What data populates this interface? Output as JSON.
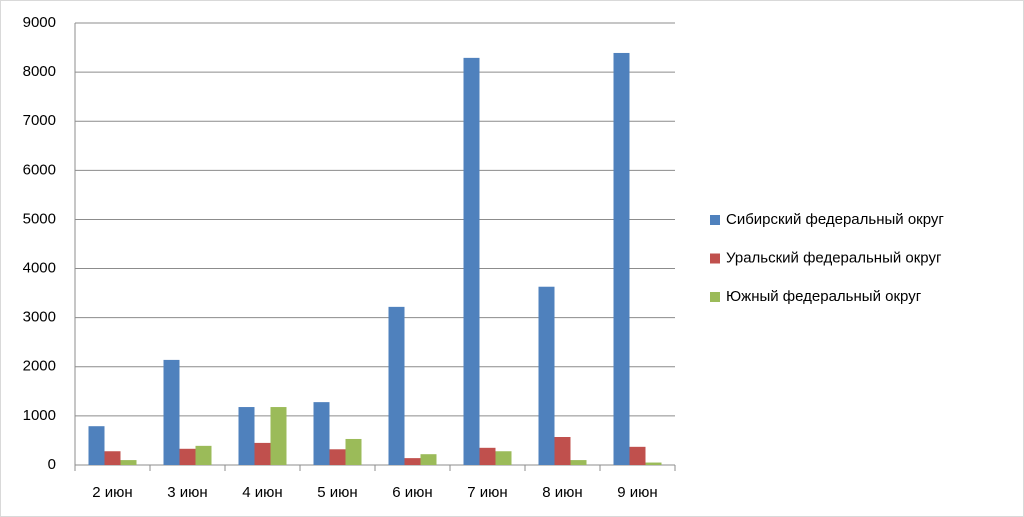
{
  "chart_data": {
    "type": "bar",
    "categories": [
      "2 июн",
      "3 июн",
      "4 июн",
      "5 июн",
      "6 июн",
      "7 июн",
      "8 июн",
      "9 июн"
    ],
    "series": [
      {
        "name": "Сибирский федеральный округ",
        "color": "#4f81bd",
        "values": [
          790,
          2140,
          1180,
          1280,
          3220,
          8290,
          3630,
          8390
        ]
      },
      {
        "name": "Уральский федеральный округ",
        "color": "#c0504d",
        "values": [
          280,
          330,
          450,
          320,
          140,
          350,
          570,
          370
        ]
      },
      {
        "name": "Южный федеральный округ",
        "color": "#9bbb59",
        "values": [
          100,
          390,
          1180,
          530,
          220,
          280,
          100,
          50
        ]
      }
    ],
    "ylim": [
      0,
      9000
    ],
    "yticks": [
      0,
      1000,
      2000,
      3000,
      4000,
      5000,
      6000,
      7000,
      8000,
      9000
    ],
    "grid": true,
    "legend": "right"
  }
}
